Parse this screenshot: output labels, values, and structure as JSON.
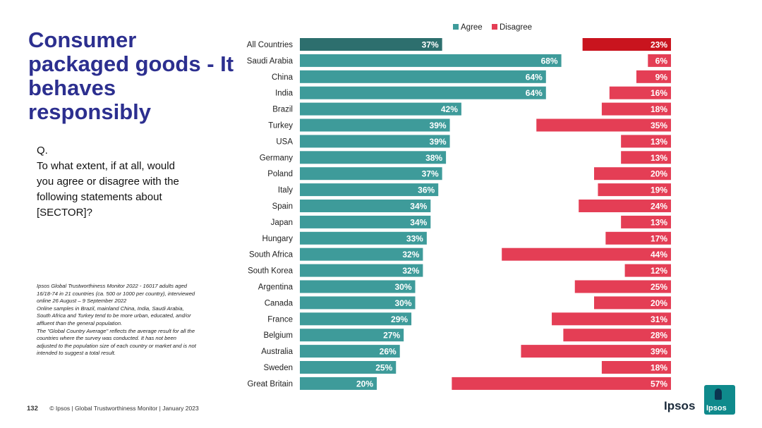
{
  "title": "Consumer packaged goods - It behaves responsibly",
  "question": [
    "Q.",
    "To what extent, if at all, would",
    "you agree or disagree with the",
    "following statements about",
    "[SECTOR]?"
  ],
  "notes": [
    "Ipsos Global Trustworthiness Monitor 2022 - 16017 adults aged",
    "16/18-74 in 21 countries (ca. 500 or 1000 per country), interviewed",
    "online 26 August – 9 September 2022",
    "Online samples in Brazil, mainland China, India, Saudi Arabia,",
    "South Africa and Turkey tend to be more urban, educated, and/or",
    "affluent than the general population.",
    "The \"Global Country Average\" reflects the average result for all the",
    "countries where the survey was conducted. It has not been",
    "adjusted to the population size of each country or market and is not",
    "intended to suggest a total result."
  ],
  "footer": {
    "page_number": "132",
    "text": "© Ipsos | Global Trustworthiness Monitor | January 2023"
  },
  "logo": {
    "text": "Ipsos",
    "box_text": "Ipsos"
  },
  "colors": {
    "title": "#2c2f8f",
    "agree": "#3e9b9a",
    "agree_highlight": "#2d6f6e",
    "disagree": "#e43e55",
    "disagree_highlight": "#c9141e"
  },
  "chart_data": {
    "type": "bar",
    "orientation": "horizontal",
    "legend_position": "top",
    "categories": [
      "All Countries",
      "Saudi Arabia",
      "China",
      "India",
      "Brazil",
      "Turkey",
      "USA",
      "Germany",
      "Poland",
      "Italy",
      "Spain",
      "Japan",
      "Hungary",
      "South Africa",
      "South Korea",
      "Argentina",
      "Canada",
      "France",
      "Belgium",
      "Australia",
      "Sweden",
      "Great Britain"
    ],
    "series": [
      {
        "name": "Agree",
        "values": [
          37,
          68,
          64,
          64,
          42,
          39,
          39,
          38,
          37,
          36,
          34,
          34,
          33,
          32,
          32,
          30,
          30,
          29,
          27,
          26,
          25,
          20
        ],
        "labels": [
          "37%",
          "68%",
          "64%",
          "64%",
          "42%",
          "39%",
          "39%",
          "38%",
          "37%",
          "36%",
          "34%",
          "34%",
          "33%",
          "32%",
          "32%",
          "30%",
          "30%",
          "29%",
          "27%",
          "26%",
          "25%",
          "20%"
        ]
      },
      {
        "name": "Disagree",
        "values": [
          23,
          6,
          9,
          16,
          18,
          35,
          13,
          13,
          20,
          19,
          24,
          13,
          17,
          44,
          12,
          25,
          20,
          31,
          28,
          39,
          18,
          57
        ],
        "labels": [
          "23%",
          "6%",
          "9%",
          "16%",
          "18%",
          "35%",
          "13%",
          "13%",
          "20%",
          "19%",
          "24%",
          "13%",
          "17%",
          "44%",
          "12%",
          "25%",
          "20%",
          "31%",
          "28%",
          "39%",
          "18%",
          "57%"
        ]
      }
    ]
  }
}
